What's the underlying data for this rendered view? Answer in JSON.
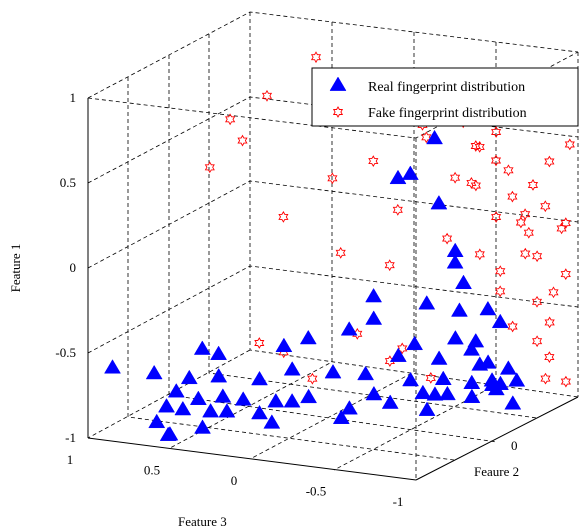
{
  "chart_data": {
    "type": "scatter",
    "projection": "3d",
    "grid": true,
    "legend_position": "top-right",
    "axes": {
      "feature1": {
        "label": "Feature 1",
        "range": [
          -1,
          1
        ],
        "ticks": [
          "-1",
          "-0.5",
          "0",
          "0.5",
          "1"
        ]
      },
      "feature2": {
        "label": "Feaure 2",
        "range": [
          -1,
          1
        ],
        "ticks": [
          "0",
          "1"
        ]
      },
      "feature3": {
        "label": "Feature 3",
        "range": [
          -1,
          1
        ],
        "ticks": [
          "1",
          "0.5",
          "0",
          "-0.5",
          "-1"
        ]
      }
    },
    "series": [
      {
        "name": "Real fingerprint distribution",
        "marker": "filled-triangle",
        "color": "#0000ff",
        "points": [
          [
            -0.6,
            -0.9,
            0.9
          ],
          [
            -0.82,
            -0.8,
            0.62
          ],
          [
            -0.85,
            -0.72,
            0.56
          ],
          [
            -0.9,
            -0.86,
            0.65
          ],
          [
            -0.95,
            -0.9,
            0.55
          ],
          [
            -0.98,
            -0.82,
            0.6
          ],
          [
            -0.75,
            -0.72,
            0.6
          ],
          [
            -0.7,
            -0.6,
            0.58
          ],
          [
            -0.88,
            -0.6,
            0.45
          ],
          [
            -0.95,
            -0.7,
            0.45
          ],
          [
            -0.8,
            -0.55,
            0.4
          ],
          [
            -0.9,
            -0.5,
            0.4
          ],
          [
            -0.85,
            -0.4,
            0.35
          ],
          [
            -0.95,
            -0.3,
            0.3
          ],
          [
            -0.9,
            -0.2,
            0.25
          ],
          [
            -0.98,
            -0.35,
            0.2
          ],
          [
            -0.92,
            -0.1,
            0.2
          ],
          [
            -0.85,
            -0.2,
            0.05
          ],
          [
            -0.95,
            0.0,
            -0.1
          ],
          [
            -0.88,
            0.1,
            -0.2
          ],
          [
            -0.95,
            0.2,
            -0.25
          ],
          [
            -0.9,
            0.3,
            -0.4
          ],
          [
            -0.98,
            0.25,
            -0.45
          ],
          [
            -0.92,
            0.4,
            -0.5
          ],
          [
            -0.85,
            0.45,
            -0.45
          ],
          [
            -0.95,
            0.5,
            -0.6
          ],
          [
            -0.9,
            0.6,
            -0.55
          ],
          [
            -0.98,
            0.55,
            -0.35
          ],
          [
            -0.88,
            0.55,
            -0.7
          ],
          [
            -0.95,
            0.7,
            -0.65
          ],
          [
            -0.8,
            0.7,
            -0.6
          ],
          [
            -0.9,
            0.75,
            -0.75
          ],
          [
            -0.85,
            0.8,
            -0.5
          ],
          [
            -0.95,
            0.85,
            -0.55
          ],
          [
            -0.9,
            0.65,
            -0.7
          ],
          [
            -0.99,
            0.6,
            -0.8
          ],
          [
            -0.75,
            0.5,
            -0.4
          ],
          [
            -0.7,
            0.3,
            -0.25
          ],
          [
            -0.8,
            0.2,
            -0.1
          ],
          [
            -0.65,
            0.4,
            -0.3
          ],
          [
            -0.6,
            0.1,
            0.2
          ],
          [
            -0.55,
            0.2,
            0.0
          ],
          [
            -0.6,
            -0.1,
            0.25
          ],
          [
            -0.7,
            -0.2,
            0.15
          ],
          [
            -0.75,
            -0.3,
            0.3
          ],
          [
            -0.6,
            -0.4,
            0.5
          ],
          [
            -0.55,
            -0.5,
            0.55
          ],
          [
            -0.5,
            0.3,
            -0.1
          ],
          [
            -0.65,
            0.6,
            -0.45
          ],
          [
            -0.7,
            0.75,
            -0.5
          ],
          [
            -0.6,
            0.85,
            -0.6
          ],
          [
            -0.5,
            0.65,
            -0.45
          ],
          [
            -0.45,
            0.55,
            -0.3
          ],
          [
            -0.3,
            0.9,
            -0.3
          ],
          [
            -0.55,
            0.9,
            -0.5
          ],
          [
            -0.4,
            0.4,
            -0.05
          ],
          [
            0.25,
            0.6,
            -0.1
          ],
          [
            0.3,
            0.55,
            -0.2
          ],
          [
            0.1,
            0.7,
            -0.3
          ],
          [
            0.4,
            0.95,
            -0.15
          ],
          [
            -0.2,
            0.8,
            -0.35
          ],
          [
            -0.35,
            0.7,
            -0.45
          ],
          [
            -0.8,
            0.9,
            -0.4
          ],
          [
            -0.9,
            0.95,
            -0.6
          ],
          [
            -0.85,
            0.35,
            -0.3
          ],
          [
            -0.75,
            0.0,
            0.0
          ],
          [
            -0.7,
            -0.5,
            0.45
          ],
          [
            -0.8,
            -0.65,
            0.5
          ],
          [
            -0.65,
            -0.75,
            0.72
          ],
          [
            -0.98,
            -0.1,
            -0.1
          ]
        ]
      },
      {
        "name": "Fake fingerprint distribution",
        "marker": "open-hexagram",
        "color": "#ff0000",
        "points": [
          [
            0.9,
            0.6,
            0.4
          ],
          [
            0.7,
            0.4,
            0.6
          ],
          [
            0.45,
            0.3,
            0.7
          ],
          [
            0.55,
            0.35,
            0.8
          ],
          [
            0.3,
            0.2,
            0.85
          ],
          [
            0.0,
            0.4,
            0.5
          ],
          [
            0.5,
            0.8,
            0.2
          ],
          [
            0.3,
            0.7,
            0.1
          ],
          [
            0.2,
            0.6,
            0.3
          ],
          [
            0.0,
            0.8,
            0.0
          ],
          [
            -0.2,
            0.5,
            0.2
          ],
          [
            -0.3,
            0.7,
            0.0
          ],
          [
            0.6,
            0.95,
            0.4
          ],
          [
            0.7,
            0.9,
            0.3
          ],
          [
            0.4,
            0.95,
            -0.1
          ],
          [
            0.2,
            0.9,
            -0.3
          ],
          [
            0.3,
            1.0,
            -0.5
          ],
          [
            0.1,
            1.0,
            -0.6
          ],
          [
            0.0,
            0.9,
            -0.55
          ],
          [
            -0.1,
            1.0,
            -0.7
          ],
          [
            0.5,
            1.0,
            -0.3
          ],
          [
            0.6,
            0.95,
            -0.4
          ],
          [
            0.7,
            1.0,
            -0.2
          ],
          [
            0.4,
            0.9,
            -0.45
          ],
          [
            0.2,
            0.95,
            -0.75
          ],
          [
            0.1,
            0.9,
            -0.85
          ],
          [
            -0.05,
            1.0,
            -0.9
          ],
          [
            0.3,
            0.85,
            -0.65
          ],
          [
            0.5,
            0.9,
            -0.55
          ],
          [
            0.6,
            1.0,
            -0.65
          ],
          [
            0.0,
            0.95,
            -0.95
          ],
          [
            -0.2,
            0.9,
            -0.8
          ],
          [
            -0.3,
            0.85,
            -0.6
          ],
          [
            -0.4,
            0.9,
            -0.9
          ],
          [
            0.15,
            1.0,
            -0.35
          ],
          [
            0.35,
            0.95,
            -0.85
          ],
          [
            -0.6,
            0.8,
            -0.7
          ],
          [
            -0.7,
            0.9,
            -0.8
          ],
          [
            -0.8,
            0.95,
            -0.85
          ],
          [
            -0.9,
            0.6,
            -0.3
          ],
          [
            -0.8,
            0.5,
            -0.1
          ],
          [
            -0.7,
            0.45,
            -0.2
          ],
          [
            -0.6,
            0.3,
            0.0
          ],
          [
            -0.85,
            0.15,
            0.2
          ],
          [
            -0.7,
            0.1,
            0.35
          ],
          [
            -0.6,
            -0.1,
            0.4
          ],
          [
            -0.85,
            0.7,
            -0.95
          ],
          [
            -0.9,
            0.85,
            -1.0
          ],
          [
            -0.3,
            0.95,
            -0.95
          ],
          [
            0.45,
            0.75,
            -0.5
          ],
          [
            0.55,
            0.7,
            -0.2
          ],
          [
            0.25,
            0.65,
            -0.55
          ],
          [
            0.05,
            0.7,
            -0.8
          ],
          [
            -0.45,
            0.95,
            -0.55
          ],
          [
            -0.5,
            1.0,
            -0.75
          ],
          [
            -0.2,
            0.8,
            -0.5
          ],
          [
            -0.1,
            0.7,
            -0.35
          ],
          [
            0.7,
            0.7,
            -0.45
          ],
          [
            0.8,
            0.8,
            -0.3
          ],
          [
            0.75,
            0.6,
            -0.6
          ],
          [
            0.15,
            0.55,
            -0.9
          ],
          [
            -0.05,
            0.45,
            -0.95
          ],
          [
            -0.5,
            0.65,
            -1.0
          ],
          [
            0.65,
            0.85,
            -0.9
          ],
          [
            0.45,
            1.0,
            -0.95
          ]
        ]
      }
    ]
  }
}
